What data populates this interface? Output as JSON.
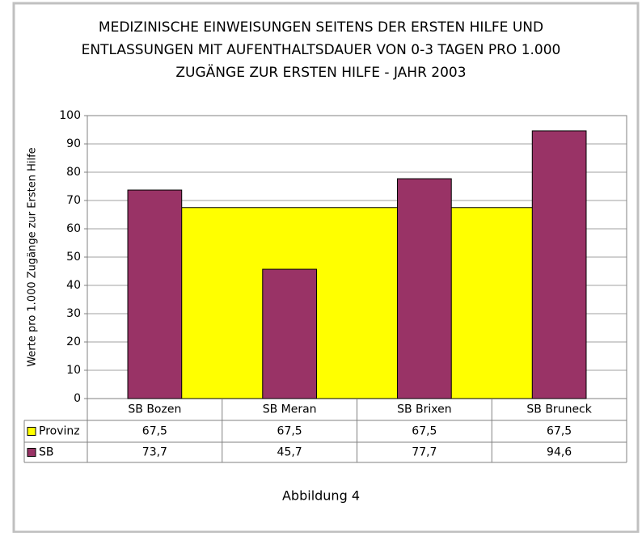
{
  "chart_data": {
    "type": "combo",
    "title": [
      "MEDIZINISCHE EINWEISUNGEN SEITENS DER ERSTEN HILFE UND",
      "ENTLASSUNGEN MIT AUFENTHALTSDAUER VON 0-3 TAGEN PRO 1.000",
      "ZUGÄNGE ZUR ERSTEN HILFE - JAHR 2003"
    ],
    "ylabel": "Werte pro 1.000  Zugänge zur Ersten Hilfe",
    "caption": "Abbildung 4",
    "categories": [
      "SB Bozen",
      "SB Meran",
      "SB Brixen",
      "SB Bruneck"
    ],
    "series": [
      {
        "name": "Provinz",
        "type": "area",
        "color": "#ffff00",
        "values": [
          67.5,
          67.5,
          67.5,
          67.5
        ],
        "value_labels": [
          "67,5",
          "67,5",
          "67,5",
          "67,5"
        ]
      },
      {
        "name": "SB",
        "type": "bar",
        "color": "#993366",
        "values": [
          73.7,
          45.7,
          77.7,
          94.6
        ],
        "value_labels": [
          "73,7",
          "45,7",
          "77,7",
          "94,6"
        ]
      }
    ],
    "ylim": [
      0,
      100
    ],
    "yticks": [
      0,
      10,
      20,
      30,
      40,
      50,
      60,
      70,
      80,
      90,
      100
    ],
    "grid": true
  }
}
